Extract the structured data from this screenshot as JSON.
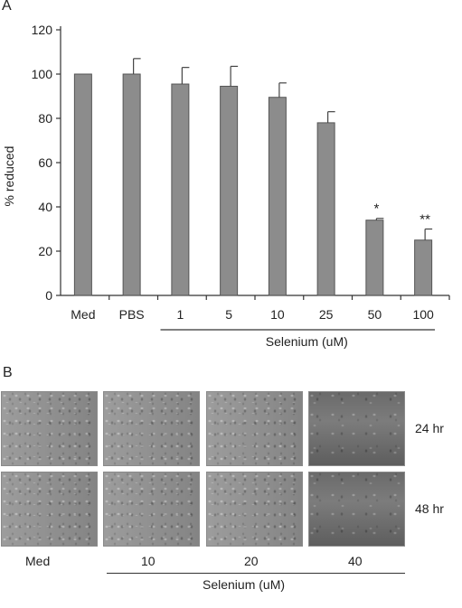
{
  "chart_data": {
    "panel_label": "A",
    "type": "bar",
    "ylabel": "% reduced",
    "ylim": [
      0,
      120
    ],
    "yticks": [
      "0",
      "20",
      "40",
      "60",
      "80",
      "100",
      "120"
    ],
    "categories": [
      "Med",
      "PBS",
      "1",
      "5",
      "10",
      "25",
      "50",
      "100"
    ],
    "values": [
      100,
      100,
      95.5,
      94.5,
      89.5,
      78,
      34,
      25
    ],
    "errors": [
      0,
      7,
      7.5,
      9,
      6.5,
      5,
      0.8,
      5
    ],
    "annotations": [
      "",
      "",
      "",
      "",
      "",
      "",
      "*",
      "**"
    ],
    "group_label": "Selenium (uM)",
    "bar_color": "#8c8c8c"
  },
  "panel_b": {
    "panel_label": "B",
    "time_labels": [
      "24 hr",
      "48 hr"
    ],
    "column_labels": [
      "Med",
      "10",
      "20",
      "40"
    ],
    "group_label": "Selenium (uM)"
  }
}
